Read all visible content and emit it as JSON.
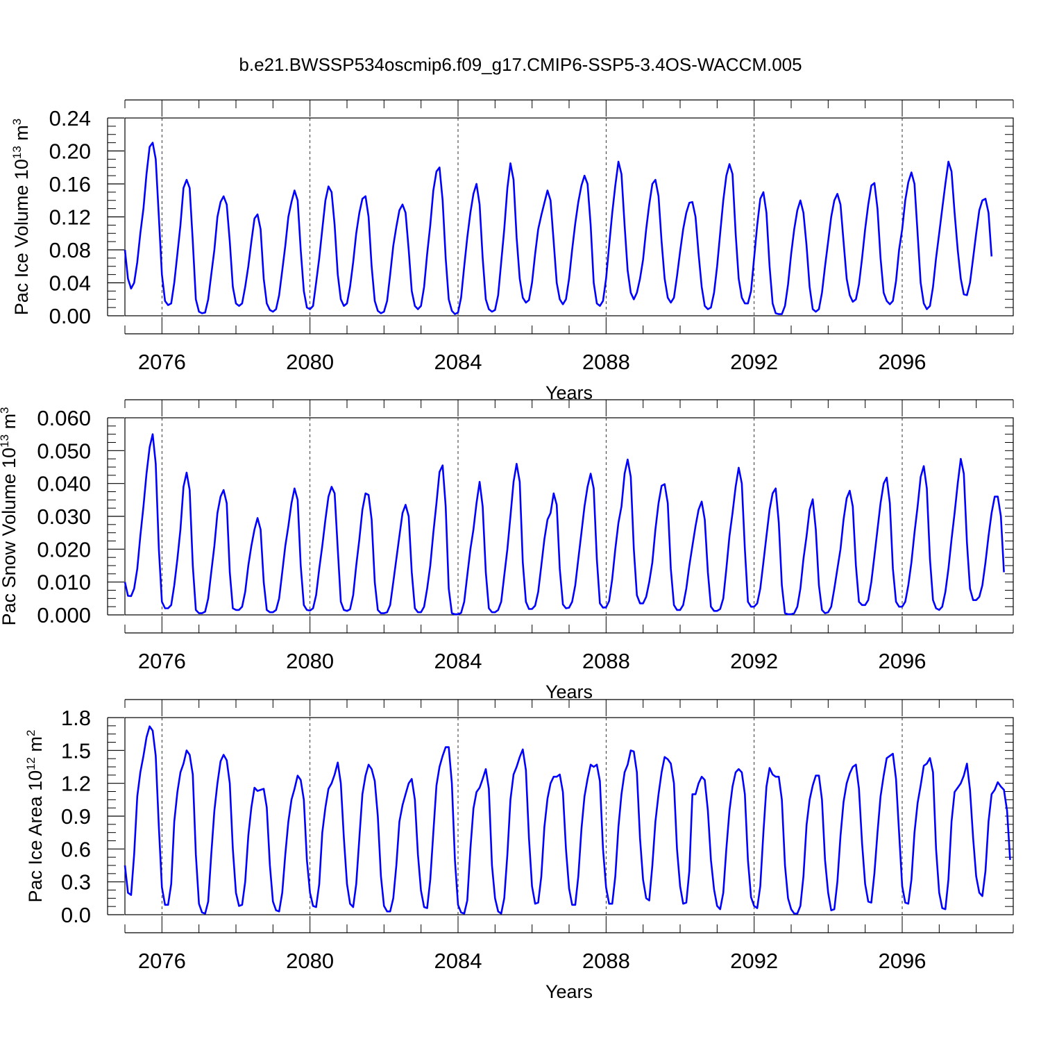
{
  "title": "b.e21.BWSSP534oscmip6.f09_g17.CMIP6-SSP5-3.4OS-WACCM.005",
  "colors": {
    "series": "#0000ff",
    "axis": "#000000",
    "gridline": "#000000"
  },
  "chart_data": [
    {
      "type": "line",
      "ylabel": "Pac Ice Volume 10",
      "ylabel_exp": "13",
      "ylabel_unit": " m",
      "ylabel_unit_exp": "3",
      "xlabel": "Years",
      "xlim": [
        2075,
        2099
      ],
      "ylim": [
        0,
        0.24
      ],
      "yticks": [
        "0.00",
        "0.04",
        "0.08",
        "0.12",
        "0.16",
        "0.20",
        "0.24"
      ],
      "xticks": [
        "2076",
        "2080",
        "2084",
        "2088",
        "2092",
        "2096"
      ],
      "decade_gridlines": true,
      "series": [
        {
          "x_start": 2075.0,
          "x_step": 0.08333,
          "values": [
            0.08,
            0.045,
            0.033,
            0.04,
            0.065,
            0.1,
            0.13,
            0.172,
            0.205,
            0.21,
            0.19,
            0.12,
            0.05,
            0.018,
            0.013,
            0.015,
            0.04,
            0.075,
            0.11,
            0.155,
            0.165,
            0.155,
            0.09,
            0.02,
            0.005,
            0.003,
            0.004,
            0.02,
            0.05,
            0.08,
            0.12,
            0.138,
            0.145,
            0.135,
            0.09,
            0.035,
            0.015,
            0.012,
            0.015,
            0.035,
            0.06,
            0.09,
            0.118,
            0.123,
            0.105,
            0.045,
            0.015,
            0.007,
            0.005,
            0.008,
            0.025,
            0.055,
            0.085,
            0.12,
            0.138,
            0.152,
            0.14,
            0.08,
            0.03,
            0.01,
            0.008,
            0.012,
            0.04,
            0.07,
            0.105,
            0.14,
            0.157,
            0.15,
            0.11,
            0.05,
            0.02,
            0.012,
            0.015,
            0.035,
            0.065,
            0.1,
            0.125,
            0.142,
            0.145,
            0.12,
            0.06,
            0.018,
            0.006,
            0.003,
            0.005,
            0.018,
            0.05,
            0.085,
            0.108,
            0.128,
            0.135,
            0.125,
            0.08,
            0.03,
            0.012,
            0.008,
            0.012,
            0.035,
            0.075,
            0.11,
            0.152,
            0.175,
            0.18,
            0.14,
            0.07,
            0.02,
            0.006,
            0.002,
            0.004,
            0.022,
            0.06,
            0.095,
            0.125,
            0.148,
            0.16,
            0.135,
            0.07,
            0.02,
            0.008,
            0.005,
            0.007,
            0.025,
            0.065,
            0.105,
            0.155,
            0.185,
            0.165,
            0.095,
            0.045,
            0.022,
            0.016,
            0.019,
            0.04,
            0.075,
            0.105,
            0.122,
            0.137,
            0.152,
            0.14,
            0.09,
            0.04,
            0.02,
            0.014,
            0.02,
            0.045,
            0.08,
            0.112,
            0.138,
            0.158,
            0.17,
            0.16,
            0.11,
            0.04,
            0.015,
            0.012,
            0.018,
            0.045,
            0.085,
            0.125,
            0.158,
            0.187,
            0.172,
            0.11,
            0.055,
            0.028,
            0.02,
            0.028,
            0.045,
            0.068,
            0.105,
            0.135,
            0.16,
            0.165,
            0.145,
            0.09,
            0.045,
            0.022,
            0.016,
            0.022,
            0.048,
            0.078,
            0.105,
            0.125,
            0.137,
            0.138,
            0.12,
            0.075,
            0.035,
            0.012,
            0.008,
            0.01,
            0.028,
            0.06,
            0.1,
            0.14,
            0.17,
            0.184,
            0.172,
            0.1,
            0.045,
            0.022,
            0.015,
            0.015,
            0.03,
            0.07,
            0.11,
            0.142,
            0.15,
            0.125,
            0.06,
            0.015,
            0.003,
            0.002,
            0.002,
            0.012,
            0.038,
            0.075,
            0.105,
            0.128,
            0.14,
            0.125,
            0.085,
            0.035,
            0.008,
            0.005,
            0.008,
            0.028,
            0.06,
            0.09,
            0.12,
            0.14,
            0.148,
            0.135,
            0.09,
            0.045,
            0.025,
            0.017,
            0.02,
            0.038,
            0.07,
            0.105,
            0.135,
            0.158,
            0.161,
            0.13,
            0.07,
            0.028,
            0.018,
            0.014,
            0.018,
            0.042,
            0.08,
            0.105,
            0.14,
            0.162,
            0.174,
            0.16,
            0.1,
            0.04,
            0.015,
            0.008,
            0.012,
            0.035,
            0.07,
            0.1,
            0.13,
            0.16,
            0.187,
            0.175,
            0.125,
            0.08,
            0.045,
            0.026,
            0.025,
            0.04,
            0.07,
            0.1,
            0.128,
            0.14,
            0.142,
            0.125,
            0.072
          ]
        }
      ]
    },
    {
      "type": "line",
      "ylabel": "Pac Snow Volume 10",
      "ylabel_exp": "13",
      "ylabel_unit": " m",
      "ylabel_unit_exp": "3",
      "xlabel": "Years",
      "xlim": [
        2075,
        2099
      ],
      "ylim": [
        0,
        0.06
      ],
      "yticks": [
        "0.000",
        "0.010",
        "0.020",
        "0.030",
        "0.040",
        "0.050",
        "0.060"
      ],
      "xticks": [
        "2076",
        "2080",
        "2084",
        "2088",
        "2092",
        "2096"
      ],
      "decade_gridlines": true,
      "series": [
        {
          "x_start": 2075.0,
          "x_step": 0.08333,
          "values": [
            0.01,
            0.0058,
            0.0057,
            0.008,
            0.014,
            0.024,
            0.033,
            0.043,
            0.051,
            0.055,
            0.046,
            0.02,
            0.004,
            0.002,
            0.002,
            0.003,
            0.009,
            0.017,
            0.026,
            0.039,
            0.0433,
            0.038,
            0.015,
            0.0015,
            0.0005,
            0.0005,
            0.001,
            0.005,
            0.013,
            0.021,
            0.031,
            0.036,
            0.038,
            0.034,
            0.013,
            0.002,
            0.0015,
            0.0015,
            0.0025,
            0.007,
            0.015,
            0.021,
            0.026,
            0.0295,
            0.026,
            0.01,
            0.0015,
            0.0008,
            0.0008,
            0.0015,
            0.005,
            0.013,
            0.021,
            0.027,
            0.034,
            0.0385,
            0.035,
            0.015,
            0.003,
            0.0015,
            0.0013,
            0.002,
            0.006,
            0.014,
            0.021,
            0.029,
            0.036,
            0.039,
            0.037,
            0.02,
            0.004,
            0.0015,
            0.0012,
            0.0017,
            0.006,
            0.015,
            0.023,
            0.032,
            0.037,
            0.0365,
            0.029,
            0.01,
            0.0015,
            0.0005,
            0.0005,
            0.0008,
            0.003,
            0.01,
            0.017,
            0.024,
            0.031,
            0.0335,
            0.03,
            0.013,
            0.002,
            0.0008,
            0.0008,
            0.0025,
            0.008,
            0.015,
            0.025,
            0.034,
            0.0435,
            0.0455,
            0.033,
            0.008,
            0.0005,
            0.0002,
            0.0002,
            0.0006,
            0.004,
            0.012,
            0.02,
            0.026,
            0.034,
            0.0405,
            0.033,
            0.013,
            0.002,
            0.0008,
            0.0008,
            0.0015,
            0.004,
            0.012,
            0.02,
            0.03,
            0.0405,
            0.046,
            0.0405,
            0.016,
            0.004,
            0.0018,
            0.0018,
            0.0028,
            0.007,
            0.015,
            0.023,
            0.029,
            0.031,
            0.037,
            0.0335,
            0.014,
            0.0032,
            0.002,
            0.0022,
            0.004,
            0.009,
            0.017,
            0.025,
            0.033,
            0.039,
            0.043,
            0.0385,
            0.017,
            0.0035,
            0.0022,
            0.0023,
            0.0042,
            0.011,
            0.02,
            0.028,
            0.033,
            0.043,
            0.0473,
            0.042,
            0.02,
            0.006,
            0.0035,
            0.0035,
            0.0055,
            0.01,
            0.016,
            0.026,
            0.034,
            0.0393,
            0.0398,
            0.034,
            0.014,
            0.003,
            0.0015,
            0.0015,
            0.003,
            0.008,
            0.015,
            0.021,
            0.027,
            0.032,
            0.0345,
            0.029,
            0.013,
            0.0025,
            0.0012,
            0.0012,
            0.0018,
            0.005,
            0.014,
            0.024,
            0.031,
            0.039,
            0.0448,
            0.04,
            0.02,
            0.004,
            0.0025,
            0.0025,
            0.0035,
            0.008,
            0.016,
            0.024,
            0.032,
            0.037,
            0.0385,
            0.028,
            0.009,
            0.0005,
            0.0002,
            0.0002,
            0.0005,
            0.0025,
            0.008,
            0.017,
            0.024,
            0.032,
            0.0352,
            0.026,
            0.009,
            0.0015,
            0.0005,
            0.0008,
            0.0025,
            0.008,
            0.014,
            0.02,
            0.029,
            0.0355,
            0.0378,
            0.033,
            0.015,
            0.004,
            0.003,
            0.003,
            0.0045,
            0.01,
            0.018,
            0.026,
            0.034,
            0.04,
            0.0418,
            0.034,
            0.014,
            0.004,
            0.0025,
            0.0025,
            0.004,
            0.009,
            0.016,
            0.025,
            0.033,
            0.042,
            0.0453,
            0.0385,
            0.017,
            0.0045,
            0.002,
            0.0015,
            0.0025,
            0.007,
            0.014,
            0.023,
            0.031,
            0.04,
            0.0475,
            0.043,
            0.022,
            0.008,
            0.0045,
            0.0045,
            0.0055,
            0.009,
            0.016,
            0.024,
            0.031,
            0.036,
            0.036,
            0.03,
            0.013
          ]
        }
      ]
    },
    {
      "type": "line",
      "ylabel": "Pac Ice Area 10",
      "ylabel_exp": "12",
      "ylabel_unit": " m",
      "ylabel_unit_exp": "2",
      "xlabel": "Years",
      "xlim": [
        2075,
        2099
      ],
      "ylim": [
        0,
        1.8
      ],
      "yticks": [
        "0.0",
        "0.3",
        "0.6",
        "0.9",
        "1.2",
        "1.5",
        "1.8"
      ],
      "xticks": [
        "2076",
        "2080",
        "2084",
        "2088",
        "2092",
        "2096"
      ],
      "decade_gridlines": true,
      "series": [
        {
          "x_start": 2075.0,
          "x_step": 0.08333,
          "values": [
            0.45,
            0.2,
            0.18,
            0.55,
            1.08,
            1.3,
            1.45,
            1.62,
            1.72,
            1.68,
            1.45,
            0.8,
            0.25,
            0.09,
            0.09,
            0.28,
            0.85,
            1.12,
            1.3,
            1.38,
            1.5,
            1.46,
            1.28,
            0.55,
            0.1,
            0.02,
            0.01,
            0.12,
            0.55,
            0.95,
            1.2,
            1.4,
            1.46,
            1.41,
            1.2,
            0.6,
            0.2,
            0.08,
            0.09,
            0.3,
            0.72,
            0.98,
            1.16,
            1.13,
            1.14,
            1.15,
            0.98,
            0.45,
            0.12,
            0.04,
            0.03,
            0.2,
            0.55,
            0.85,
            1.05,
            1.15,
            1.27,
            1.23,
            1.05,
            0.5,
            0.2,
            0.08,
            0.07,
            0.28,
            0.75,
            0.98,
            1.15,
            1.2,
            1.28,
            1.39,
            1.2,
            0.7,
            0.28,
            0.1,
            0.07,
            0.28,
            0.7,
            1.1,
            1.27,
            1.37,
            1.33,
            1.22,
            0.9,
            0.35,
            0.08,
            0.03,
            0.03,
            0.15,
            0.45,
            0.85,
            1.0,
            1.1,
            1.2,
            1.24,
            1.05,
            0.55,
            0.22,
            0.07,
            0.06,
            0.32,
            0.75,
            1.18,
            1.35,
            1.45,
            1.53,
            1.53,
            1.2,
            0.5,
            0.09,
            0.02,
            0.01,
            0.13,
            0.6,
            0.97,
            1.12,
            1.16,
            1.24,
            1.33,
            1.15,
            0.45,
            0.15,
            0.03,
            0.01,
            0.15,
            0.55,
            1.05,
            1.28,
            1.35,
            1.44,
            1.51,
            1.32,
            0.7,
            0.26,
            0.1,
            0.11,
            0.35,
            0.8,
            1.06,
            1.2,
            1.26,
            1.26,
            1.28,
            1.12,
            0.6,
            0.24,
            0.09,
            0.09,
            0.35,
            0.78,
            1.08,
            1.24,
            1.37,
            1.35,
            1.37,
            1.22,
            0.6,
            0.25,
            0.1,
            0.1,
            0.35,
            0.8,
            1.1,
            1.3,
            1.37,
            1.5,
            1.49,
            1.3,
            0.7,
            0.32,
            0.15,
            0.13,
            0.45,
            0.85,
            1.1,
            1.3,
            1.44,
            1.42,
            1.38,
            1.2,
            0.6,
            0.26,
            0.1,
            0.11,
            0.4,
            1.1,
            1.1,
            1.2,
            1.26,
            1.23,
            0.95,
            0.5,
            0.23,
            0.08,
            0.05,
            0.2,
            0.6,
            0.95,
            1.17,
            1.3,
            1.33,
            1.3,
            1.1,
            0.5,
            0.16,
            0.08,
            0.06,
            0.26,
            0.75,
            1.17,
            1.34,
            1.28,
            1.26,
            1.26,
            1.05,
            0.45,
            0.15,
            0.05,
            0.01,
            0.01,
            0.08,
            0.35,
            0.82,
            1.05,
            1.18,
            1.27,
            1.27,
            1.05,
            0.5,
            0.2,
            0.04,
            0.05,
            0.3,
            0.72,
            1.03,
            1.2,
            1.29,
            1.35,
            1.37,
            1.15,
            0.65,
            0.28,
            0.12,
            0.11,
            0.38,
            0.75,
            1.08,
            1.27,
            1.43,
            1.45,
            1.47,
            1.24,
            0.75,
            0.26,
            0.11,
            0.1,
            0.32,
            0.75,
            1.02,
            1.18,
            1.36,
            1.38,
            1.43,
            1.3,
            0.6,
            0.2,
            0.06,
            0.05,
            0.32,
            0.85,
            1.12,
            1.16,
            1.2,
            1.27,
            1.38,
            1.14,
            0.7,
            0.35,
            0.2,
            0.17,
            0.4,
            0.85,
            1.1,
            1.14,
            1.21,
            1.17,
            1.14,
            0.95,
            0.5
          ]
        }
      ]
    }
  ]
}
